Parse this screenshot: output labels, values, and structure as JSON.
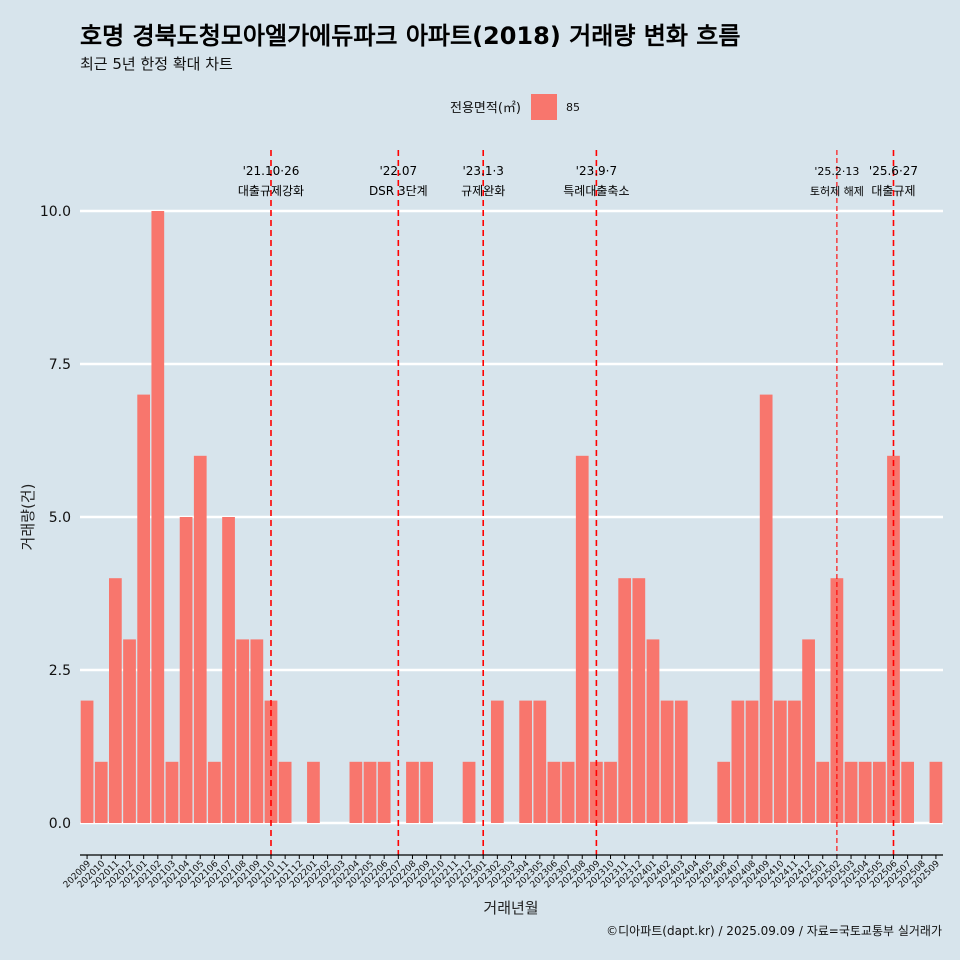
{
  "chart_data": {
    "type": "bar",
    "title": "호명 경북도청모아엘가에듀파크 아파트(2018) 거래량 변화 흐름",
    "subtitle": "최근 5년 한정 확대 차트",
    "xlabel": "거래년월",
    "ylabel": "거래량(건)",
    "ylim": [
      0,
      10
    ],
    "y_ticks": [
      "0.0",
      "2.5",
      "5.0",
      "7.5",
      "10.0"
    ],
    "grid": true,
    "legend": {
      "title": "전용면적(㎡)",
      "placement": "top",
      "entries": [
        {
          "label": "85",
          "color": "#f8766d"
        }
      ]
    },
    "categories": [
      "202009",
      "202010",
      "202011",
      "202012",
      "202101",
      "202102",
      "202103",
      "202104",
      "202105",
      "202106",
      "202107",
      "202108",
      "202109",
      "202110",
      "202111",
      "202112",
      "202201",
      "202202",
      "202203",
      "202204",
      "202205",
      "202206",
      "202207",
      "202208",
      "202209",
      "202210",
      "202211",
      "202212",
      "202301",
      "202302",
      "202303",
      "202304",
      "202305",
      "202306",
      "202307",
      "202308",
      "202309",
      "202310",
      "202311",
      "202312",
      "202401",
      "202402",
      "202403",
      "202404",
      "202405",
      "202406",
      "202407",
      "202408",
      "202409",
      "202410",
      "202411",
      "202412",
      "202501",
      "202502",
      "202503",
      "202504",
      "202505",
      "202506",
      "202507",
      "202508",
      "202509"
    ],
    "series": [
      {
        "name": "85",
        "color": "#f8766d",
        "values": [
          2,
          1,
          4,
          3,
          7,
          10,
          1,
          5,
          6,
          1,
          5,
          3,
          3,
          2,
          1,
          0,
          1,
          0,
          0,
          1,
          1,
          1,
          0,
          1,
          1,
          0,
          0,
          1,
          0,
          2,
          0,
          2,
          2,
          1,
          1,
          6,
          1,
          1,
          4,
          4,
          3,
          2,
          2,
          0,
          0,
          1,
          2,
          2,
          7,
          2,
          2,
          3,
          1,
          4,
          1,
          1,
          1,
          6,
          1,
          0,
          1
        ]
      }
    ],
    "annotations": [
      {
        "category": "202110",
        "line1": "'21.10·26",
        "line2": "대출규제강화",
        "style": "dashed"
      },
      {
        "category": "202207",
        "line1": "'22.07",
        "line2": "DSR 3단계",
        "style": "dashed"
      },
      {
        "category": "202301",
        "line1": "'23.1·3",
        "line2": "규제완화",
        "style": "dashed"
      },
      {
        "category": "202309",
        "line1": "'23.9·7",
        "line2": "특례대출축소",
        "style": "dashed"
      },
      {
        "category": "202502",
        "line1": "'25.2·13",
        "line2": "토허제 해제",
        "style": "dashed-thin"
      },
      {
        "category": "202506",
        "line1": "'25.6·27",
        "line2": "대출규제",
        "style": "dashed"
      }
    ],
    "annotation_color": "#ff0000"
  },
  "caption": "©디아파트(dapt.kr) / 2025.09.09 / 자료=국토교통부 실거래가"
}
